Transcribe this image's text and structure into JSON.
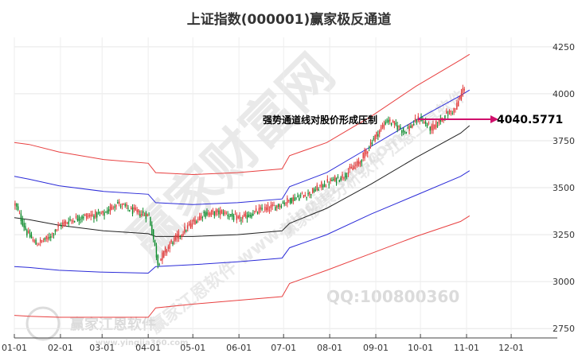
{
  "chart_data": {
    "type": "candlestick",
    "title": "上证指数(000001)赢家极反通道",
    "annotation": "强势通道线对股价形成压制",
    "last_value": "4040.5771",
    "watermarks": {
      "main": "赢家财富网",
      "diag": "赢家江恩软件 www.yingjia360.com",
      "diag2": "赢家股票分析软件 江恩工具软件",
      "qq": "QQ:100800360",
      "logo": "赢家江恩软件",
      "url": "www.yingjia360.com"
    },
    "ylim": [
      2700,
      4300
    ],
    "yticks": [
      {
        "value": 4250,
        "label": "4250"
      },
      {
        "value": 4000,
        "label": "4000"
      },
      {
        "value": 3750,
        "label": "3750"
      },
      {
        "value": 3500,
        "label": "3500"
      },
      {
        "value": 3250,
        "label": "3250"
      },
      {
        "value": 3000,
        "label": "3000"
      },
      {
        "value": 2750,
        "label": "2750"
      }
    ],
    "xlim": [
      0,
      365
    ],
    "xticks": [
      {
        "day": 0,
        "label": "01-01"
      },
      {
        "day": 31,
        "label": "02-01"
      },
      {
        "day": 59,
        "label": "03-01"
      },
      {
        "day": 90,
        "label": "04-01"
      },
      {
        "day": 120,
        "label": "05-01"
      },
      {
        "day": 151,
        "label": "06-01"
      },
      {
        "day": 181,
        "label": "07-01"
      },
      {
        "day": 212,
        "label": "08-01"
      },
      {
        "day": 243,
        "label": "09-01"
      },
      {
        "day": 273,
        "label": "10-01"
      },
      {
        "day": 304,
        "label": "11-01"
      },
      {
        "day": 334,
        "label": "12-01"
      }
    ],
    "price_anchors": {
      "x": [
        0,
        8,
        14,
        22,
        30,
        38,
        48,
        60,
        68,
        78,
        90,
        96,
        104,
        116,
        126,
        140,
        150,
        165,
        175,
        186,
        198,
        208,
        220,
        232,
        240,
        250,
        262,
        272,
        280,
        288,
        296,
        302
      ],
      "y": [
        3410,
        3260,
        3200,
        3230,
        3300,
        3330,
        3350,
        3360,
        3420,
        3380,
        3350,
        3100,
        3200,
        3290,
        3360,
        3370,
        3330,
        3380,
        3400,
        3440,
        3470,
        3520,
        3560,
        3640,
        3750,
        3860,
        3800,
        3870,
        3810,
        3880,
        3920,
        4040
      ]
    },
    "lines": [
      {
        "name": "upper-outer",
        "color": "#e84040",
        "x": [
          0,
          10,
          30,
          60,
          90,
          95,
          120,
          150,
          180,
          185,
          210,
          240,
          270,
          300,
          306
        ],
        "y": [
          3740,
          3730,
          3690,
          3650,
          3630,
          3580,
          3570,
          3580,
          3600,
          3670,
          3740,
          3880,
          4040,
          4180,
          4210
        ]
      },
      {
        "name": "upper-mid",
        "color": "#2b2bd8",
        "x": [
          0,
          10,
          30,
          60,
          90,
          95,
          120,
          150,
          180,
          185,
          210,
          240,
          270,
          300,
          306
        ],
        "y": [
          3560,
          3545,
          3510,
          3480,
          3465,
          3420,
          3410,
          3420,
          3440,
          3505,
          3580,
          3720,
          3860,
          3990,
          4020
        ]
      },
      {
        "name": "center",
        "color": "#222222",
        "x": [
          0,
          10,
          30,
          60,
          90,
          95,
          120,
          150,
          180,
          185,
          210,
          240,
          270,
          300,
          306
        ],
        "y": [
          3340,
          3330,
          3300,
          3270,
          3255,
          3240,
          3240,
          3250,
          3270,
          3310,
          3390,
          3520,
          3660,
          3790,
          3830
        ]
      },
      {
        "name": "lower-mid",
        "color": "#2b2bd8",
        "x": [
          0,
          10,
          30,
          60,
          90,
          95,
          120,
          150,
          180,
          185,
          210,
          240,
          270,
          300,
          306
        ],
        "y": [
          3080,
          3075,
          3060,
          3050,
          3045,
          3080,
          3090,
          3105,
          3125,
          3180,
          3250,
          3360,
          3460,
          3560,
          3590
        ]
      },
      {
        "name": "lower-outer",
        "color": "#e84040",
        "x": [
          0,
          10,
          30,
          60,
          90,
          95,
          120,
          150,
          180,
          185,
          210,
          240,
          270,
          300,
          306
        ],
        "y": [
          2820,
          2815,
          2810,
          2810,
          2810,
          2860,
          2880,
          2900,
          2920,
          2990,
          3060,
          3150,
          3240,
          3320,
          3350
        ]
      }
    ]
  }
}
